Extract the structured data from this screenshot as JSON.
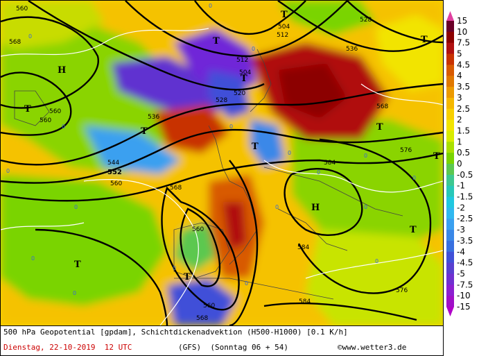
{
  "footer": {
    "description": "500 hPa Geopotential [gpdam], Schichtdickenadvektion (H500-H1000) [0.1 K/h]",
    "date": "Dienstag, 22-10-2019  12 UTC",
    "model": "(GFS)  (Sonntag 06 + 54)",
    "source_symbol": "©",
    "source": "www.wetter3.de"
  },
  "legend": {
    "levels": [
      "15",
      "10",
      "7.5",
      "5",
      "4.5",
      "4",
      "3.5",
      "3",
      "2.5",
      "2",
      "1.5",
      "1",
      "0.5",
      "0",
      "-0.5",
      "-1",
      "-1.5",
      "-2",
      "-2.5",
      "-3",
      "-3.5",
      "-4",
      "-4.5",
      "-5",
      "-7.5",
      "-10",
      "-15"
    ],
    "colors": [
      "#6a0028",
      "#8c0000",
      "#b01010",
      "#c83200",
      "#d85a00",
      "#e07800",
      "#ec9a00",
      "#f5b800",
      "#f8d000",
      "#f2e400",
      "#d8ec00",
      "#aae000",
      "#7ad400",
      "#5cc850",
      "#3ec890",
      "#28c8b8",
      "#20c8e0",
      "#30b8f0",
      "#3aa0f0",
      "#3a88e8",
      "#3870e0",
      "#4050d8",
      "#5840d0",
      "#7030d0",
      "#8c20d0",
      "#a010c8",
      "#b000b8"
    ],
    "top_arrow_color": "#e040a0",
    "bottom_arrow_color": "#b000c8"
  },
  "map": {
    "contour_labels": [
      "560",
      "568",
      "504",
      "528",
      "536",
      "512",
      "512",
      "504",
      "520",
      "528",
      "536",
      "568",
      "560",
      "560",
      "544",
      "552",
      "560",
      "568",
      "576",
      "584",
      "560",
      "584",
      "560",
      "568",
      "576",
      "584"
    ],
    "highs": [
      "H",
      "H"
    ],
    "lows": [
      "T",
      "T",
      "T",
      "T",
      "T",
      "T",
      "T",
      "T",
      "T",
      "T",
      "T",
      "T"
    ],
    "zero_marker": "0"
  }
}
